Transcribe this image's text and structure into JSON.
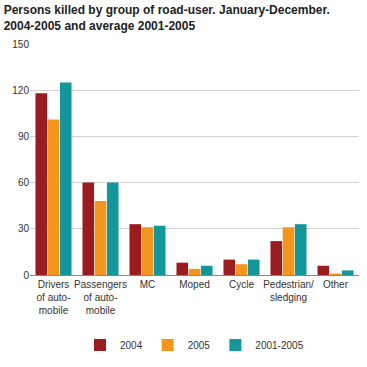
{
  "chart_data": {
    "type": "bar",
    "title": [
      "Persons killed by group of road-user. January-December.",
      "2004-2005 and average 2001-2005"
    ],
    "categories": [
      "Drivers\nof auto-\nmobile",
      "Passengers\nof auto-\nmobile",
      "MC",
      "Moped",
      "Cycle",
      "Pedestrian/\nsledging",
      "Other"
    ],
    "series": [
      {
        "name": "2004",
        "color": "#9b1c1f",
        "values": [
          118,
          60,
          33,
          8,
          10,
          22,
          6
        ]
      },
      {
        "name": "2005",
        "color": "#f4961e",
        "values": [
          101,
          48,
          31,
          4,
          7,
          31,
          1
        ]
      },
      {
        "name": "2001-2005",
        "color": "#14979b",
        "values": [
          125,
          60,
          32,
          6,
          10,
          33,
          3
        ]
      }
    ],
    "ylim": [
      0,
      150
    ],
    "yticks": [
      0,
      30,
      60,
      90,
      120,
      150
    ],
    "grid": true,
    "legend": "bottom"
  }
}
